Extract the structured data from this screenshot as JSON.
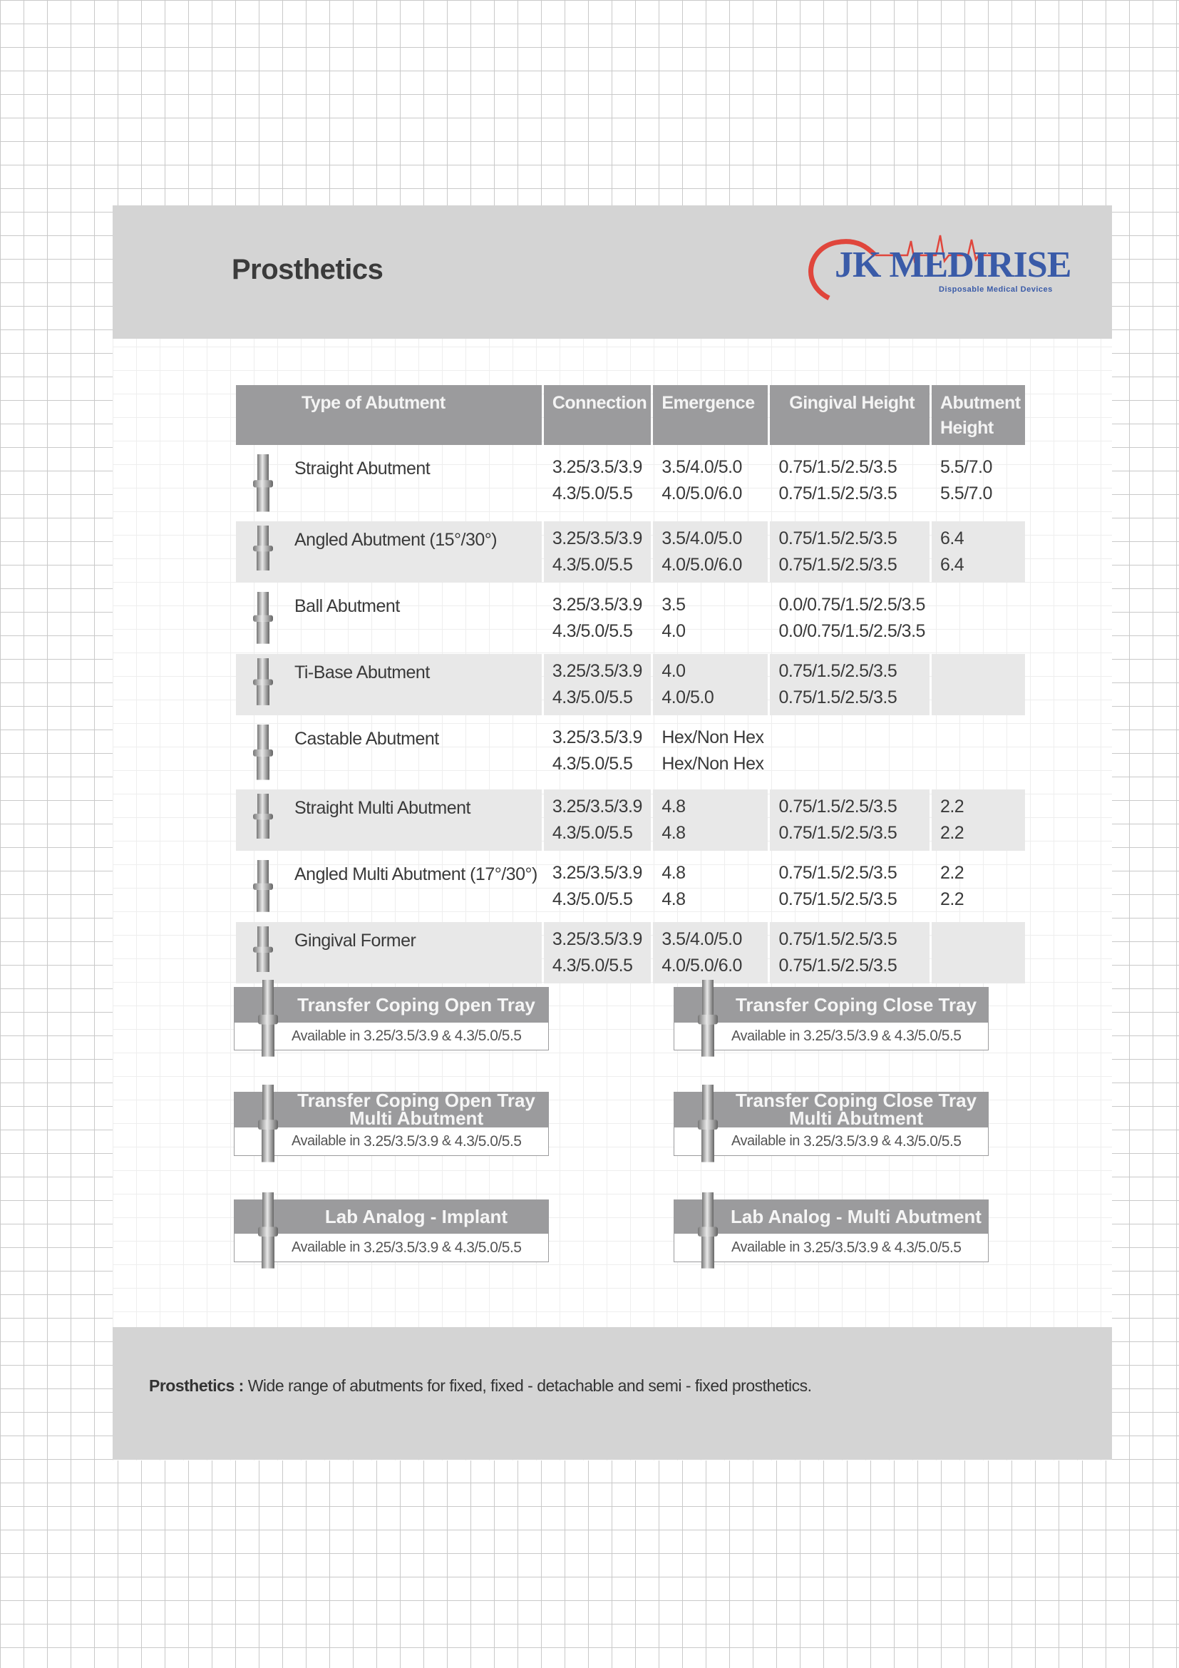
{
  "header": {
    "title": "Prosthetics",
    "logo": {
      "name": "JK MEDIRISE",
      "tagline": "Disposable Medical Devices",
      "colors": {
        "text": "#3a5ba8",
        "heart": "#e0463c"
      }
    }
  },
  "table": {
    "columns": [
      "Type of Abutment",
      "Connection",
      "Emergence",
      "Gingival Height",
      "Abutment Height"
    ],
    "rows": [
      {
        "name": "Straight Abutment",
        "icon": "straight-abutment-icon",
        "shaded": false,
        "lines": [
          [
            "3.25/3.5/3.9",
            "3.5/4.0/5.0",
            "0.75/1.5/2.5/3.5",
            "5.5/7.0"
          ],
          [
            "4.3/5.0/5.5",
            "4.0/5.0/6.0",
            "0.75/1.5/2.5/3.5",
            "5.5/7.0"
          ]
        ]
      },
      {
        "name": "Angled Abutment (15°/30°)",
        "icon": "angled-abutment-icon",
        "shaded": true,
        "lines": [
          [
            "3.25/3.5/3.9",
            "3.5/4.0/5.0",
            "0.75/1.5/2.5/3.5",
            "6.4"
          ],
          [
            "4.3/5.0/5.5",
            "4.0/5.0/6.0",
            "0.75/1.5/2.5/3.5",
            "6.4"
          ]
        ]
      },
      {
        "name": "Ball Abutment",
        "icon": "ball-abutment-icon",
        "shaded": false,
        "lines": [
          [
            "3.25/3.5/3.9",
            "3.5",
            "0.0/0.75/1.5/2.5/3.5",
            ""
          ],
          [
            "4.3/5.0/5.5",
            "4.0",
            "0.0/0.75/1.5/2.5/3.5",
            ""
          ]
        ]
      },
      {
        "name": "Ti-Base Abutment",
        "icon": "ti-base-abutment-icon",
        "shaded": true,
        "lines": [
          [
            "3.25/3.5/3.9",
            "4.0",
            "0.75/1.5/2.5/3.5",
            ""
          ],
          [
            "4.3/5.0/5.5",
            "4.0/5.0",
            "0.75/1.5/2.5/3.5",
            ""
          ]
        ]
      },
      {
        "name": "Castable Abutment",
        "icon": "castable-abutment-icon",
        "shaded": false,
        "lines": [
          [
            "3.25/3.5/3.9",
            "Hex/Non Hex",
            "",
            ""
          ],
          [
            "4.3/5.0/5.5",
            "Hex/Non Hex",
            "",
            ""
          ]
        ]
      },
      {
        "name": "Straight Multi Abutment",
        "icon": "straight-multi-abutment-icon",
        "shaded": true,
        "lines": [
          [
            "3.25/3.5/3.9",
            "4.8",
            "0.75/1.5/2.5/3.5",
            "2.2"
          ],
          [
            "4.3/5.0/5.5",
            "4.8",
            "0.75/1.5/2.5/3.5",
            "2.2"
          ]
        ]
      },
      {
        "name": "Angled Multi Abutment (17°/30°)",
        "icon": "angled-multi-abutment-icon",
        "shaded": false,
        "lines": [
          [
            "3.25/3.5/3.9",
            "4.8",
            "0.75/1.5/2.5/3.5",
            "2.2"
          ],
          [
            "4.3/5.0/5.5",
            "4.8",
            "0.75/1.5/2.5/3.5",
            "2.2"
          ]
        ]
      },
      {
        "name": "Gingival Former",
        "icon": "gingival-former-icon",
        "shaded": true,
        "lines": [
          [
            "3.25/3.5/3.9",
            "3.5/4.0/5.0",
            "0.75/1.5/2.5/3.5",
            ""
          ],
          [
            "4.3/5.0/5.5",
            "4.0/5.0/6.0",
            "0.75/1.5/2.5/3.5",
            ""
          ]
        ]
      }
    ]
  },
  "accessories": [
    {
      "title": "Transfer Coping Open Tray",
      "subtitle": "",
      "avail_prefix": "Available in",
      "sizes_a": "3.25/3.5/3.9",
      "amp": "&",
      "sizes_b": "4.3/5.0/5.5"
    },
    {
      "title": "Transfer Coping Close Tray",
      "subtitle": "",
      "avail_prefix": "Available in",
      "sizes_a": "3.25/3.5/3.9",
      "amp": "&",
      "sizes_b": "4.3/5.0/5.5"
    },
    {
      "title": "Transfer Coping Open Tray",
      "subtitle": "Multi Abutment",
      "avail_prefix": "Available in",
      "sizes_a": "3.25/3.5/3.9",
      "amp": "&",
      "sizes_b": "4.3/5.0/5.5"
    },
    {
      "title": "Transfer Coping Close Tray",
      "subtitle": "Multi Abutment",
      "avail_prefix": "Available in",
      "sizes_a": "3.25/3.5/3.9",
      "amp": "&",
      "sizes_b": "4.3/5.0/5.5"
    },
    {
      "title": "Lab Analog - Implant",
      "subtitle": "",
      "avail_prefix": "Available in",
      "sizes_a": "3.25/3.5/3.9",
      "amp": "&",
      "sizes_b": "4.3/5.0/5.5"
    },
    {
      "title": "Lab Analog - Multi Abutment",
      "subtitle": "",
      "avail_prefix": "Available in",
      "sizes_a": "3.25/3.5/3.9",
      "amp": "&",
      "sizes_b": "4.3/5.0/5.5"
    }
  ],
  "footer": {
    "label": "Prosthetics :",
    "text": "Wide range of abutments for fixed, fixed - detachable and semi - fixed prosthetics."
  }
}
